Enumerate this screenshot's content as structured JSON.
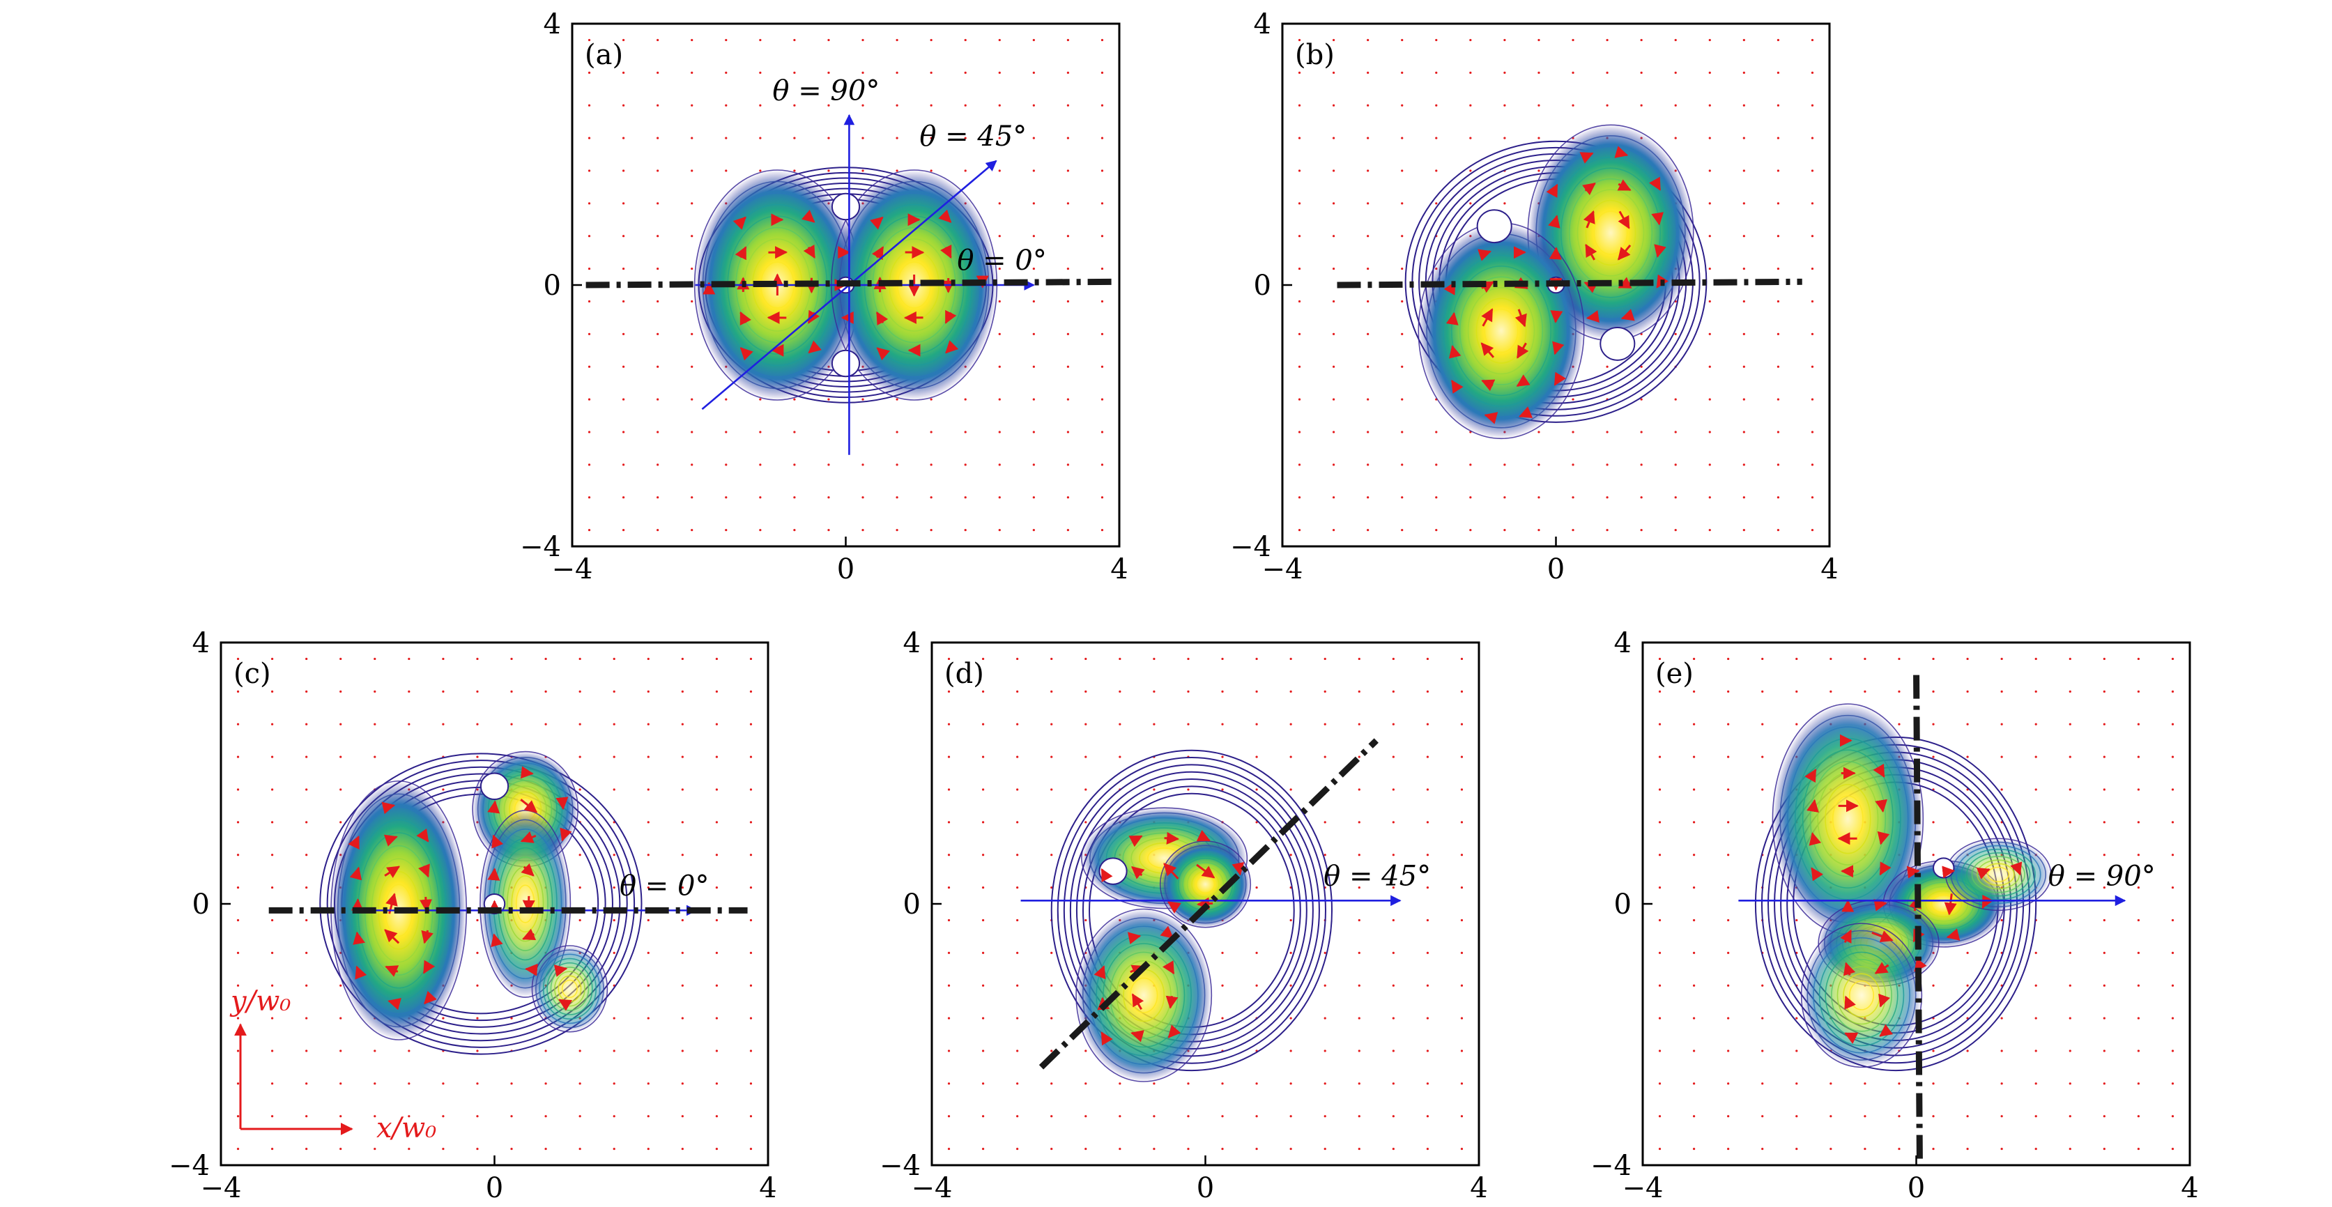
{
  "chart_data": [
    {
      "panel": "(a)",
      "type": "contour",
      "xlim": [
        -4,
        4
      ],
      "ylim": [
        -4,
        4
      ],
      "xticks": [
        "−4",
        "0",
        "4"
      ],
      "yticks": [
        "−4",
        "0",
        "4"
      ],
      "lobes": [
        {
          "x": -1.0,
          "y": 0.0,
          "sx": 0.55,
          "sy": 0.8,
          "amp": 1.0
        },
        {
          "x": 1.0,
          "y": 0.0,
          "sx": 0.55,
          "sy": 0.8,
          "amp": 1.0
        }
      ],
      "outline": {
        "cx": 0,
        "cy": 0,
        "rx": 2.15,
        "ry": 1.8
      },
      "holes": [
        {
          "x": 0,
          "y": 1.2,
          "r": 0.2
        },
        {
          "x": 0,
          "y": -1.2,
          "r": 0.2
        },
        {
          "x": 0,
          "y": 0,
          "r": 0.12
        }
      ],
      "dashed_line": [
        [
          -3.8,
          0.0
        ],
        [
          4.0,
          0.05
        ]
      ],
      "arrows": [
        {
          "from": [
            -2.2,
            0.0
          ],
          "to": [
            2.75,
            0.0
          ],
          "label": "θ = 0°"
        },
        {
          "from": [
            0.05,
            -2.6
          ],
          "to": [
            0.05,
            2.6
          ],
          "label": "θ = 90°"
        },
        {
          "from": [
            -2.1,
            -1.9
          ],
          "to": [
            2.2,
            1.9
          ],
          "label": "θ = 45°"
        }
      ]
    },
    {
      "panel": "(b)",
      "type": "contour",
      "xlim": [
        -4,
        4
      ],
      "ylim": [
        -4,
        4
      ],
      "xticks": [
        "−4",
        "0",
        "4"
      ],
      "yticks": [
        "−4",
        "0",
        "4"
      ],
      "lobes": [
        {
          "x": 0.8,
          "y": 0.8,
          "sx": 0.55,
          "sy": 0.75,
          "amp": 1.0
        },
        {
          "x": -0.8,
          "y": -0.7,
          "sx": 0.55,
          "sy": 0.75,
          "amp": 1.0
        }
      ],
      "outline": {
        "cx": 0,
        "cy": 0.05,
        "rx": 2.2,
        "ry": 2.15
      },
      "holes": [
        {
          "x": -0.9,
          "y": 0.9,
          "r": 0.25
        },
        {
          "x": 0.9,
          "y": -0.9,
          "r": 0.25
        },
        {
          "x": 0,
          "y": 0,
          "r": 0.12
        }
      ],
      "dashed_line": [
        [
          -3.2,
          0.0
        ],
        [
          3.6,
          0.05
        ]
      ],
      "arrows": []
    },
    {
      "panel": "(c)",
      "type": "contour",
      "xlim": [
        -4,
        4
      ],
      "ylim": [
        -4,
        4
      ],
      "xticks": [
        "−4",
        "0",
        "4"
      ],
      "yticks": [
        "−4",
        "0",
        "4"
      ],
      "lobes": [
        {
          "x": -1.4,
          "y": -0.1,
          "sx": 0.45,
          "sy": 0.9,
          "amp": 1.0
        },
        {
          "x": 0.45,
          "y": 1.45,
          "sx": 0.35,
          "sy": 0.4,
          "amp": 0.9
        },
        {
          "x": 0.45,
          "y": 0.0,
          "sx": 0.3,
          "sy": 0.65,
          "amp": 0.75
        },
        {
          "x": 1.1,
          "y": -1.3,
          "sx": 0.25,
          "sy": 0.3,
          "amp": 0.5
        }
      ],
      "outline": {
        "cx": -0.2,
        "cy": 0.0,
        "rx": 2.35,
        "ry": 2.3
      },
      "holes": [
        {
          "x": 0,
          "y": 0,
          "r": 0.15
        },
        {
          "x": 0,
          "y": 1.8,
          "r": 0.2
        }
      ],
      "dashed_line": [
        [
          -3.3,
          -0.1
        ],
        [
          3.7,
          -0.1
        ]
      ],
      "arrows": [
        {
          "from": [
            -1.8,
            -0.1
          ],
          "to": [
            2.95,
            -0.1
          ],
          "label": "θ = 0°"
        }
      ],
      "axis_key": {
        "x": "x/w₀",
        "y": "y/w₀"
      }
    },
    {
      "panel": "(d)",
      "type": "contour",
      "xlim": [
        -4,
        4
      ],
      "ylim": [
        -4,
        4
      ],
      "xticks": [
        "−4",
        "0",
        "4"
      ],
      "yticks": [
        "−4",
        "0",
        "4"
      ],
      "lobes": [
        {
          "x": -0.6,
          "y": 0.7,
          "sx": 0.55,
          "sy": 0.35,
          "amp": 0.9
        },
        {
          "x": 0.0,
          "y": 0.3,
          "sx": 0.3,
          "sy": 0.3,
          "amp": 1.0
        },
        {
          "x": -0.9,
          "y": -1.4,
          "sx": 0.45,
          "sy": 0.6,
          "amp": 0.85
        }
      ],
      "outline": {
        "cx": -0.2,
        "cy": -0.1,
        "rx": 2.05,
        "ry": 2.45
      },
      "holes": [
        {
          "x": -1.35,
          "y": 0.5,
          "r": 0.2
        }
      ],
      "dashed_line": [
        [
          -2.4,
          -2.5
        ],
        [
          2.5,
          2.5
        ]
      ],
      "arrows": [
        {
          "from": [
            -2.7,
            0.05
          ],
          "to": [
            2.85,
            0.05
          ],
          "label": "θ = 45°"
        }
      ]
    },
    {
      "panel": "(e)",
      "type": "contour",
      "xlim": [
        -4,
        4
      ],
      "ylim": [
        -4,
        4
      ],
      "xticks": [
        "−4",
        "0",
        "4"
      ],
      "yticks": [
        "−4",
        "0",
        "4"
      ],
      "lobes": [
        {
          "x": -1.0,
          "y": 1.3,
          "sx": 0.5,
          "sy": 0.8,
          "amp": 0.9
        },
        {
          "x": 0.4,
          "y": 0.0,
          "sx": 0.4,
          "sy": 0.3,
          "amp": 1.0
        },
        {
          "x": -0.55,
          "y": -0.6,
          "sx": 0.4,
          "sy": 0.3,
          "amp": 0.9
        },
        {
          "x": -0.8,
          "y": -1.4,
          "sx": 0.4,
          "sy": 0.5,
          "amp": 0.6
        },
        {
          "x": 1.2,
          "y": 0.45,
          "sx": 0.35,
          "sy": 0.25,
          "amp": 0.45
        }
      ],
      "outline": {
        "cx": -0.3,
        "cy": 0.0,
        "rx": 2.05,
        "ry": 2.55
      },
      "holes": [
        {
          "x": 0.4,
          "y": 0.55,
          "r": 0.15
        }
      ],
      "dashed_line": [
        [
          0.05,
          -3.9
        ],
        [
          0.0,
          3.6
        ]
      ],
      "arrows": [
        {
          "from": [
            -2.6,
            0.05
          ],
          "to": [
            3.05,
            0.05
          ],
          "label": "θ = 90°"
        }
      ]
    }
  ],
  "colors": {
    "outer_contour": "#2c1f8a",
    "arrow_blue": "#1f1fe0",
    "field_red": "#e41a1c",
    "dashed": "#1a1a1a",
    "viridis_low": "#3b2a98",
    "viridis_mid": "#21a6a6",
    "viridis_high": "#fde725"
  }
}
